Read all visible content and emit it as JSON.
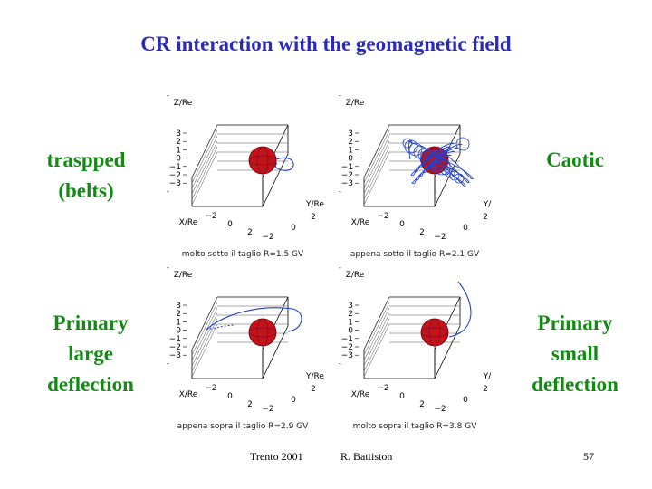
{
  "slide": {
    "title": "CR interaction with the geomagnetic field",
    "labels": {
      "trapped": [
        "traspped",
        "(belts)"
      ],
      "caotic": [
        "Caotic"
      ],
      "primary_large": [
        "Primary",
        "large",
        "deflection"
      ],
      "primary_small": [
        "Primary",
        "small",
        "deflection"
      ]
    },
    "colors": {
      "title": "#2b2bb8",
      "labels": "#138a13",
      "trajectory": "#2040d0",
      "earth": "#c0141c"
    },
    "footer": {
      "event": "Trento   2001",
      "author": "R. Battiston",
      "page": "57"
    }
  },
  "panels": [
    {
      "id": "trapped",
      "caption": "molto sotto il taglio R=1.5 GV",
      "z_axis": "Z/Re",
      "x_axis": "X/Re",
      "y_axis": "Y/Re",
      "z_ticks": [
        "3",
        "2",
        "1",
        "0",
        "−1",
        "−2",
        "−3"
      ],
      "x_ticks": [
        "−2",
        "0",
        "2"
      ],
      "y_ticks": [
        "2",
        "0",
        "−2"
      ]
    },
    {
      "id": "caotic",
      "caption": "appena sotto il taglio R=2.1 GV",
      "z_axis": "Z/Re",
      "x_axis": "X/Re",
      "y_axis": "Y/",
      "z_ticks": [
        "3",
        "2",
        "1",
        "0",
        "−1",
        "−2",
        "−3"
      ],
      "x_ticks": [
        "−2",
        "0",
        "2"
      ],
      "y_ticks": [
        "2",
        "0",
        "−2"
      ]
    },
    {
      "id": "primary-large",
      "caption": "appena sopra  il taglio R=2.9 GV",
      "z_axis": "Z/Re",
      "x_axis": "X/Re",
      "y_axis": "Y/Re",
      "z_ticks": [
        "3",
        "2",
        "1",
        "0",
        "−1",
        "−2",
        "−3"
      ],
      "x_ticks": [
        "−2",
        "0",
        "2"
      ],
      "y_ticks": [
        "2",
        "0",
        "−2"
      ]
    },
    {
      "id": "primary-small",
      "caption": "molto sopra  il taglio R=3.8 GV",
      "z_axis": "Z/Re",
      "x_axis": "X/Re",
      "y_axis": "Y/",
      "z_ticks": [
        "3",
        "2",
        "1",
        "0",
        "−1",
        "−2",
        "−3"
      ],
      "x_ticks": [
        "−2",
        "0",
        "2"
      ],
      "y_ticks": [
        "2",
        "0",
        "−2"
      ]
    }
  ]
}
